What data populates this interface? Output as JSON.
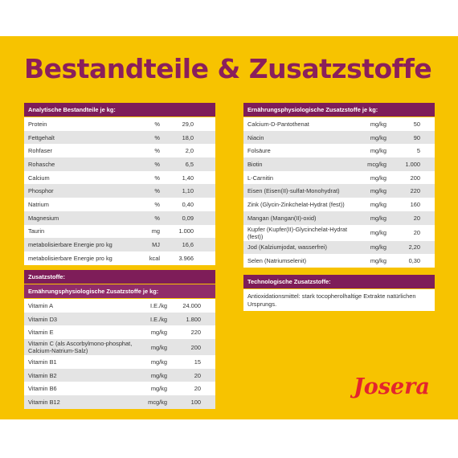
{
  "title": "Bestandteile & Zusatzstoffe",
  "logo": "Josera",
  "tables": [
    {
      "headers": [
        "Analytische Bestandteile je kg:"
      ],
      "rows": [
        [
          "Protein",
          "%",
          "29,0"
        ],
        [
          "Fettgehalt",
          "%",
          "18,0"
        ],
        [
          "Rohfaser",
          "%",
          "2,0"
        ],
        [
          "Rohasche",
          "%",
          "6,5"
        ],
        [
          "Calcium",
          "%",
          "1,40"
        ],
        [
          "Phosphor",
          "%",
          "1,10"
        ],
        [
          "Natrium",
          "%",
          "0,40"
        ],
        [
          "Magnesium",
          "%",
          "0,09"
        ],
        [
          "Taurin",
          "mg",
          "1.000"
        ],
        [
          "metabolisierbare Energie pro kg",
          "MJ",
          "16,6"
        ],
        [
          "metabolisierbare Energie pro kg",
          "kcal",
          "3.966"
        ]
      ]
    },
    {
      "headers": [
        "Zusatzstoffe:",
        "Ernährungsphysiologische Zusatzstoffe je kg:"
      ],
      "rows": [
        [
          "Vitamin A",
          "I.E./kg",
          "24.000"
        ],
        [
          "Vitamin D3",
          "I.E./kg",
          "1.800"
        ],
        [
          "Vitamin E",
          "mg/kg",
          "220"
        ],
        [
          "Vitamin C (als Ascorbylmono-phosphat, Calcium-Natrium-Salz)",
          "mg/kg",
          "200"
        ],
        [
          "Vitamin B1",
          "mg/kg",
          "15"
        ],
        [
          "Vitamin B2",
          "mg/kg",
          "20"
        ],
        [
          "Vitamin B6",
          "mg/kg",
          "20"
        ],
        [
          "Vitamin B12",
          "mcg/kg",
          "100"
        ]
      ]
    },
    {
      "headers": [
        "Ernährungsphysiologische Zusatzstoffe je kg:"
      ],
      "rows": [
        [
          "Calcium-D-Pantothenat",
          "mg/kg",
          "50"
        ],
        [
          "Niacin",
          "mg/kg",
          "90"
        ],
        [
          "Folsäure",
          "mg/kg",
          "5"
        ],
        [
          "Biotin",
          "mcg/kg",
          "1.000"
        ],
        [
          "L-Carnitin",
          "mg/kg",
          "200"
        ],
        [
          "Eisen (Eisen(II)-sulfat-Monohydrat)",
          "mg/kg",
          "220"
        ],
        [
          "Zink (Glycin-Zinkchelat-Hydrat (fest))",
          "mg/kg",
          "160"
        ],
        [
          "Mangan (Mangan(II)-oxid)",
          "mg/kg",
          "20"
        ],
        [
          "Kupfer (Kupfer(II)-Glycinchelat-Hydrat (fest))",
          "mg/kg",
          "20"
        ],
        [
          "Jod (Kalziumjodat, wasserfrei)",
          "mg/kg",
          "2,20"
        ],
        [
          "Selen (Natriumselenit)",
          "mg/kg",
          "0,30"
        ]
      ]
    },
    {
      "headers": [
        "Technologische Zusatzstoffe:"
      ],
      "text": "Antioxidationsmittel: stark tocopherolhaltige Extrakte natürlichen Ursprungs."
    }
  ]
}
